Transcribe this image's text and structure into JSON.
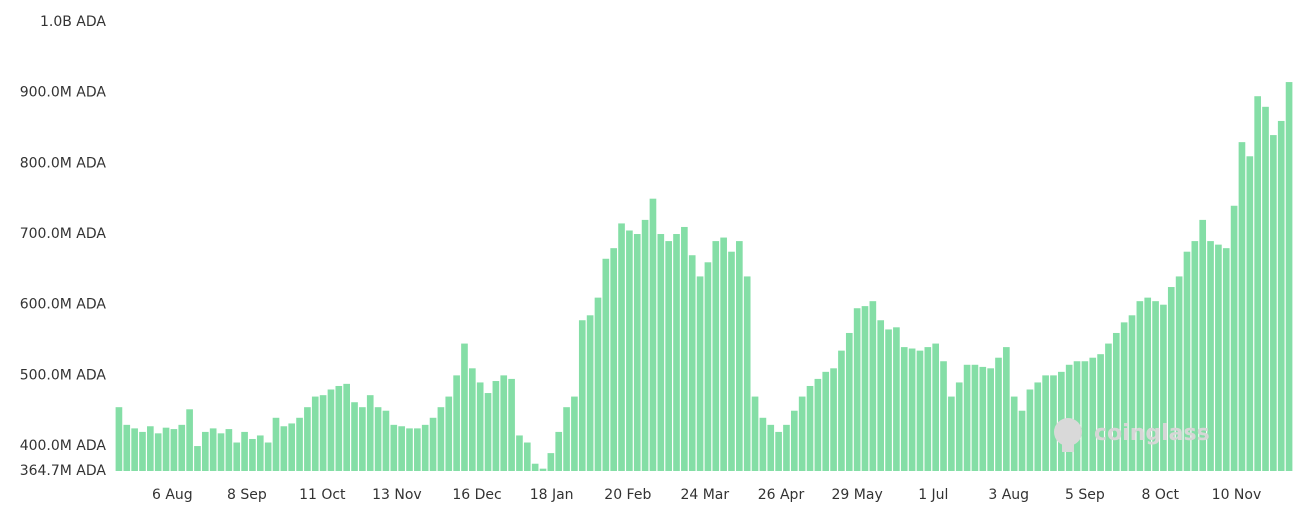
{
  "chart_data": {
    "type": "bar",
    "watermark": "coinglass",
    "color": "#84dea6",
    "values": [
      455,
      430,
      425,
      420,
      428,
      418,
      426,
      424,
      430,
      452,
      400,
      420,
      425,
      418,
      424,
      405,
      420,
      410,
      415,
      405,
      440,
      428,
      432,
      440,
      455,
      470,
      472,
      480,
      485,
      488,
      462,
      455,
      472,
      455,
      450,
      430,
      428,
      425,
      425,
      430,
      440,
      455,
      470,
      500,
      545,
      510,
      490,
      475,
      492,
      500,
      495,
      415,
      405,
      375,
      368,
      390,
      420,
      455,
      470,
      578,
      585,
      610,
      665,
      680,
      715,
      705,
      700,
      720,
      750,
      700,
      690,
      700,
      710,
      670,
      640,
      660,
      690,
      695,
      675,
      690,
      640,
      470,
      440,
      430,
      420,
      430,
      450,
      470,
      485,
      495,
      505,
      510,
      535,
      560,
      595,
      598,
      605,
      578,
      565,
      568,
      540,
      538,
      535,
      540,
      545,
      520,
      470,
      490,
      515,
      515,
      512,
      510,
      525,
      540,
      470,
      450,
      480,
      490,
      500,
      500,
      505,
      515,
      520,
      520,
      525,
      530,
      545,
      560,
      575,
      585,
      605,
      610,
      605,
      600,
      625,
      640,
      675,
      690,
      720,
      690,
      685,
      680,
      740,
      830,
      810,
      895,
      880,
      840,
      860,
      915
    ],
    "xlim": [
      0,
      150
    ],
    "xticks": [
      {
        "value": 7.3,
        "label": "6 Aug"
      },
      {
        "value": 16.8,
        "label": "8 Sep"
      },
      {
        "value": 26.4,
        "label": "11 Oct"
      },
      {
        "value": 35.9,
        "label": "13 Nov"
      },
      {
        "value": 46.1,
        "label": "16 Dec"
      },
      {
        "value": 55.6,
        "label": "18 Jan"
      },
      {
        "value": 65.3,
        "label": "20 Feb"
      },
      {
        "value": 75.1,
        "label": "24 Mar"
      },
      {
        "value": 84.8,
        "label": "26 Apr"
      },
      {
        "value": 94.5,
        "label": "29 May"
      },
      {
        "value": 104.2,
        "label": "1 Jul"
      },
      {
        "value": 113.8,
        "label": "3 Aug"
      },
      {
        "value": 123.5,
        "label": "5 Sep"
      },
      {
        "value": 133.1,
        "label": "8 Oct"
      },
      {
        "value": 142.8,
        "label": "10 Nov"
      }
    ],
    "ylim": [
      364.7,
      1000
    ],
    "yticks": [
      {
        "value": 364.7,
        "label": "364.7M ADA"
      },
      {
        "value": 400,
        "label": "400.0M ADA"
      },
      {
        "value": 500,
        "label": "500.0M ADA"
      },
      {
        "value": 600,
        "label": "600.0M ADA"
      },
      {
        "value": 700,
        "label": "700.0M ADA"
      },
      {
        "value": 800,
        "label": "800.0M ADA"
      },
      {
        "value": 900,
        "label": "900.0M ADA"
      },
      {
        "value": 1000,
        "label": "1.0B ADA"
      }
    ]
  }
}
